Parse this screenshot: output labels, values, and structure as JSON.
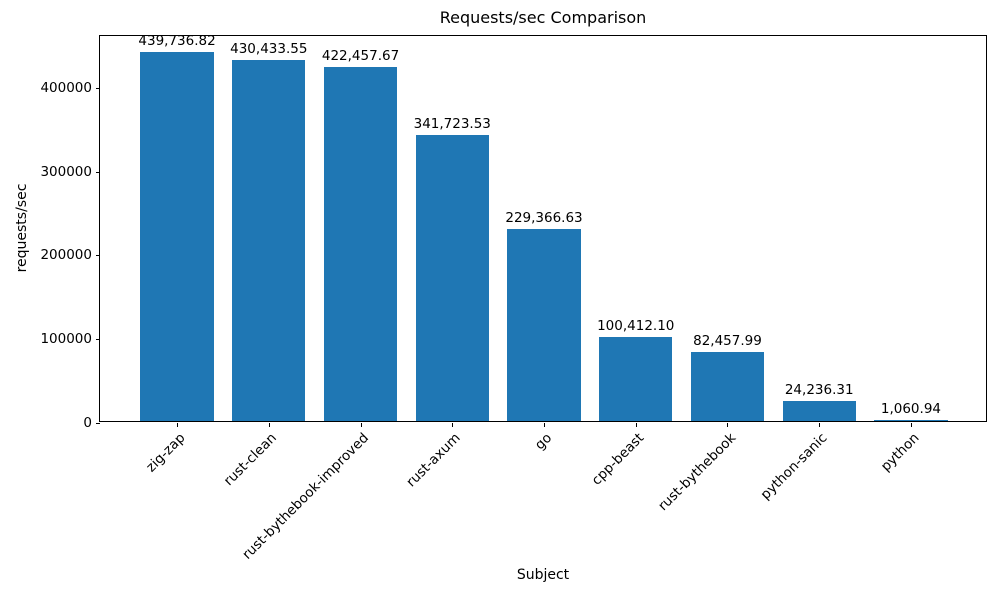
{
  "chart_data": {
    "type": "bar",
    "title": "Requests/sec Comparison",
    "xlabel": "Subject",
    "ylabel": "requests/sec",
    "categories": [
      "zig-zap",
      "rust-clean",
      "rust-bythebook-improved",
      "rust-axum",
      "go",
      "cpp-beast",
      "rust-bythebook",
      "python-sanic",
      "python"
    ],
    "values": [
      439736.82,
      430433.55,
      422457.67,
      341723.53,
      229366.63,
      100412.1,
      82457.99,
      24236.31,
      1060.94
    ],
    "value_labels": [
      "439,736.82",
      "430,433.55",
      "422,457.67",
      "341,723.53",
      "229,366.63",
      "100,412.10",
      "82,457.99",
      "24,236.31",
      "1,060.94"
    ],
    "yticks": [
      0,
      100000,
      200000,
      300000,
      400000
    ],
    "ytick_labels": [
      "0",
      "100000",
      "200000",
      "300000",
      "400000"
    ],
    "ylim": [
      0,
      461724
    ],
    "bar_color": "#1f77b4",
    "bar_rel_width": 0.8,
    "grid": false,
    "legend": null,
    "xtick_rotation_deg": 45
  }
}
